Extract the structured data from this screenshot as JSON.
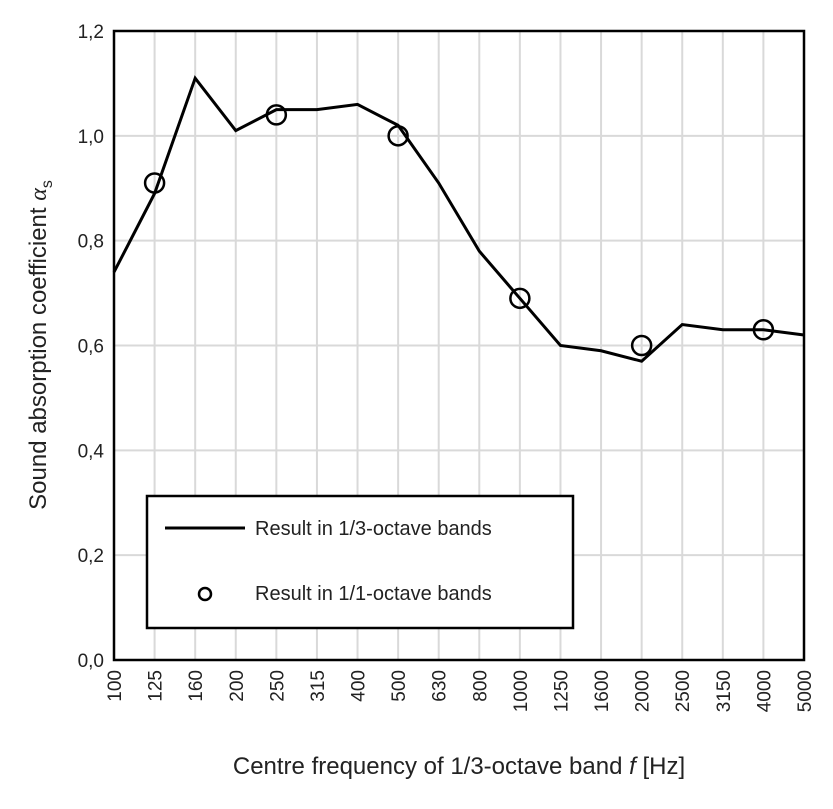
{
  "chart_data": {
    "type": "line",
    "categories": [
      "100",
      "125",
      "160",
      "200",
      "250",
      "315",
      "400",
      "500",
      "630",
      "800",
      "1000",
      "1250",
      "1600",
      "2000",
      "2500",
      "3150",
      "4000",
      "5000"
    ],
    "series": [
      {
        "name": "Result in 1/3-octave bands",
        "kind": "line",
        "values": [
          0.74,
          0.89,
          1.11,
          1.01,
          1.05,
          1.05,
          1.06,
          1.02,
          0.91,
          0.78,
          0.69,
          0.6,
          0.59,
          0.57,
          0.64,
          0.63,
          0.63,
          0.62
        ]
      },
      {
        "name": "Result in 1/1-octave bands",
        "kind": "markers",
        "points": [
          {
            "x": "125",
            "y": 0.91
          },
          {
            "x": "250",
            "y": 1.04
          },
          {
            "x": "500",
            "y": 1.0
          },
          {
            "x": "1000",
            "y": 0.69
          },
          {
            "x": "2000",
            "y": 0.6
          },
          {
            "x": "4000",
            "y": 0.63
          }
        ]
      }
    ],
    "yticks": [
      "0,0",
      "0,2",
      "0,4",
      "0,6",
      "0,8",
      "1,0",
      "1,2"
    ],
    "ytick_values": [
      0.0,
      0.2,
      0.4,
      0.6,
      0.8,
      1.0,
      1.2
    ],
    "ylim": [
      0.0,
      1.2
    ],
    "xlabel": {
      "prefix": "Centre frequency of 1/3-octave band ",
      "symbol": "f",
      "suffix": " [Hz]"
    },
    "ylabel": {
      "prefix": "Sound absorption coefficient ",
      "symbol": "α",
      "subscript": "s"
    },
    "grid": true,
    "legend": {
      "position": "bottom-left",
      "entries": [
        "Result in 1/3-octave bands",
        "Result in 1/1-octave bands"
      ]
    },
    "colors": {
      "line": "#000000",
      "grid": "#d9d9d9",
      "frame": "#000000"
    }
  }
}
